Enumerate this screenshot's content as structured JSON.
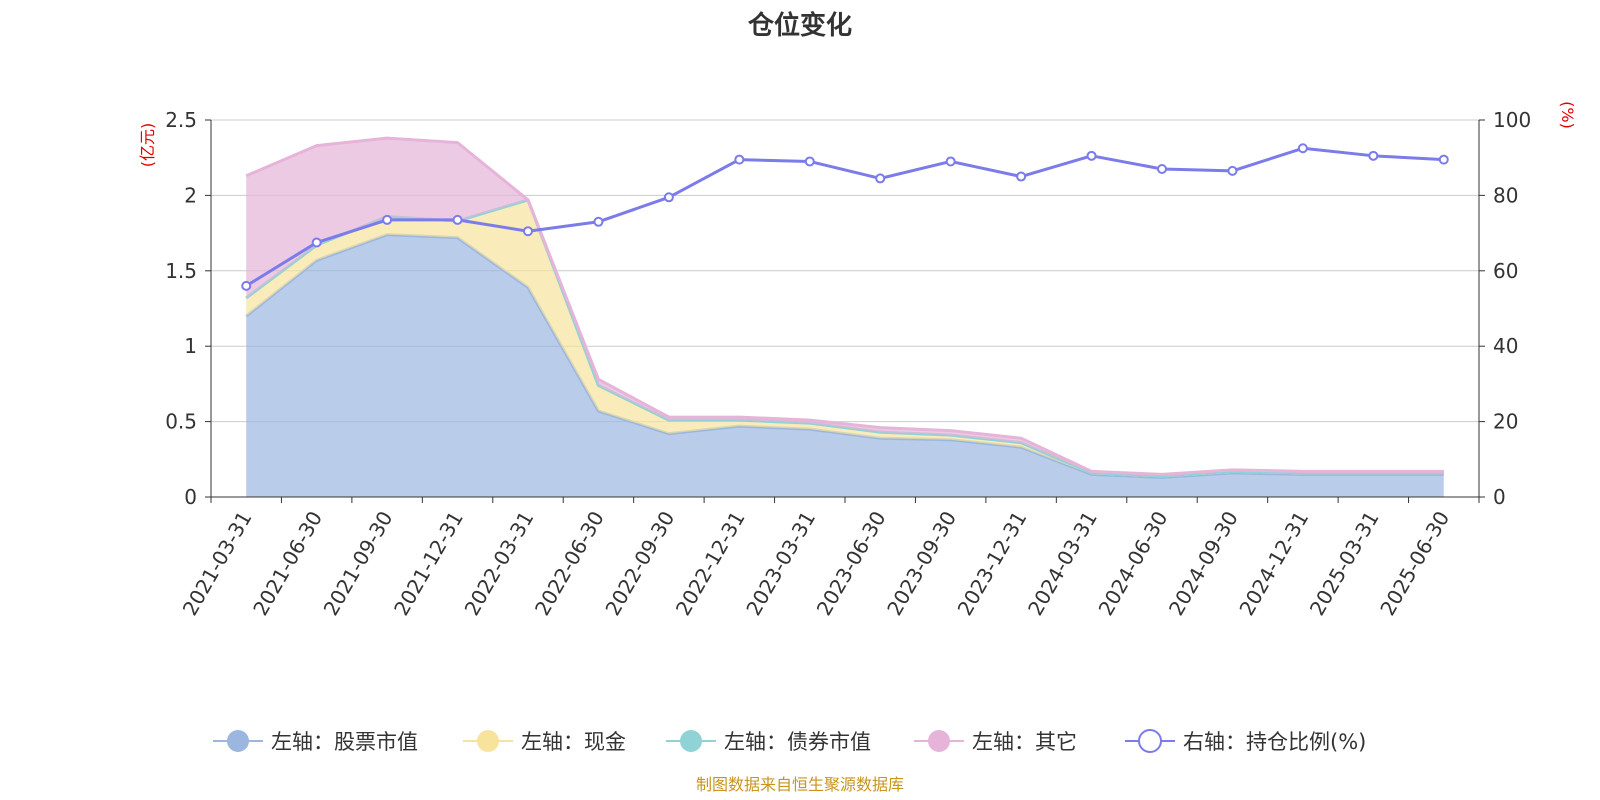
{
  "chart_data": {
    "type": "area",
    "title": "仓位变化",
    "left_axis_unit": "(亿元)",
    "right_axis_unit": "(%)",
    "categories": [
      "2021-03-31",
      "2021-06-30",
      "2021-09-30",
      "2021-12-31",
      "2022-03-31",
      "2022-06-30",
      "2022-09-30",
      "2022-12-31",
      "2023-03-31",
      "2023-06-30",
      "2023-09-30",
      "2023-12-31",
      "2024-03-31",
      "2024-06-30",
      "2024-09-30",
      "2024-12-31",
      "2025-03-31",
      "2025-06-30"
    ],
    "left_ylim": [
      0,
      2.5
    ],
    "left_ticks": [
      "0",
      "0.5",
      "1",
      "1.5",
      "2",
      "2.5"
    ],
    "right_ylim": [
      0,
      100
    ],
    "right_ticks": [
      "0",
      "20",
      "40",
      "60",
      "80",
      "100"
    ],
    "grid": true,
    "legend_position": "bottom",
    "series": [
      {
        "name": "左轴：股票市值",
        "axis": "left",
        "kind": "stacked-area",
        "color": "#9bb7e0",
        "values": [
          1.2,
          1.57,
          1.74,
          1.72,
          1.39,
          0.57,
          0.42,
          0.47,
          0.45,
          0.39,
          0.38,
          0.33,
          0.15,
          0.13,
          0.16,
          0.15,
          0.15,
          0.15
        ]
      },
      {
        "name": "左轴：现金",
        "axis": "left",
        "kind": "stacked-area",
        "color": "#f7e39c",
        "values": [
          0.12,
          0.1,
          0.12,
          0.11,
          0.58,
          0.17,
          0.09,
          0.04,
          0.04,
          0.04,
          0.03,
          0.03,
          0.01,
          0.01,
          0.01,
          0.01,
          0.01,
          0.01
        ]
      },
      {
        "name": "左轴：债券市值",
        "axis": "left",
        "kind": "stacked-area",
        "color": "#8fd3d6",
        "values": [
          0,
          0,
          0,
          0,
          0,
          0,
          0,
          0,
          0,
          0,
          0,
          0,
          0,
          0,
          0,
          0,
          0,
          0
        ]
      },
      {
        "name": "左轴：其它",
        "axis": "left",
        "kind": "stacked-area",
        "color": "#e6b3d9",
        "values": [
          0.81,
          0.66,
          0.52,
          0.52,
          0.0,
          0.04,
          0.02,
          0.02,
          0.02,
          0.03,
          0.03,
          0.03,
          0.01,
          0.01,
          0.01,
          0.01,
          0.01,
          0.01
        ]
      },
      {
        "name": "右轴：持仓比例(%)",
        "axis": "right",
        "kind": "line",
        "color": "#7b7bea",
        "values": [
          56,
          67.5,
          73.5,
          73.5,
          70.5,
          73,
          79.5,
          89.5,
          89,
          84.5,
          89,
          85,
          90.5,
          87,
          86.5,
          92.5,
          90.5,
          89.5
        ]
      }
    ],
    "source": "制图数据来自恒生聚源数据库"
  }
}
